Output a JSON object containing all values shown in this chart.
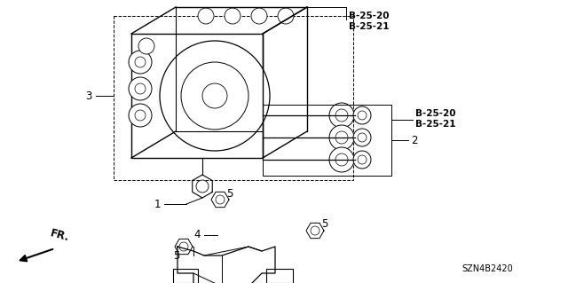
{
  "bg_color": "#ffffff",
  "part_numbers_top": [
    "B-25-20",
    "B-25-21"
  ],
  "part_numbers_right": [
    "B-25-20",
    "B-25-21"
  ],
  "diagram_id": "SZN4B2420",
  "text_color": "#000000",
  "line_color": "#000000"
}
